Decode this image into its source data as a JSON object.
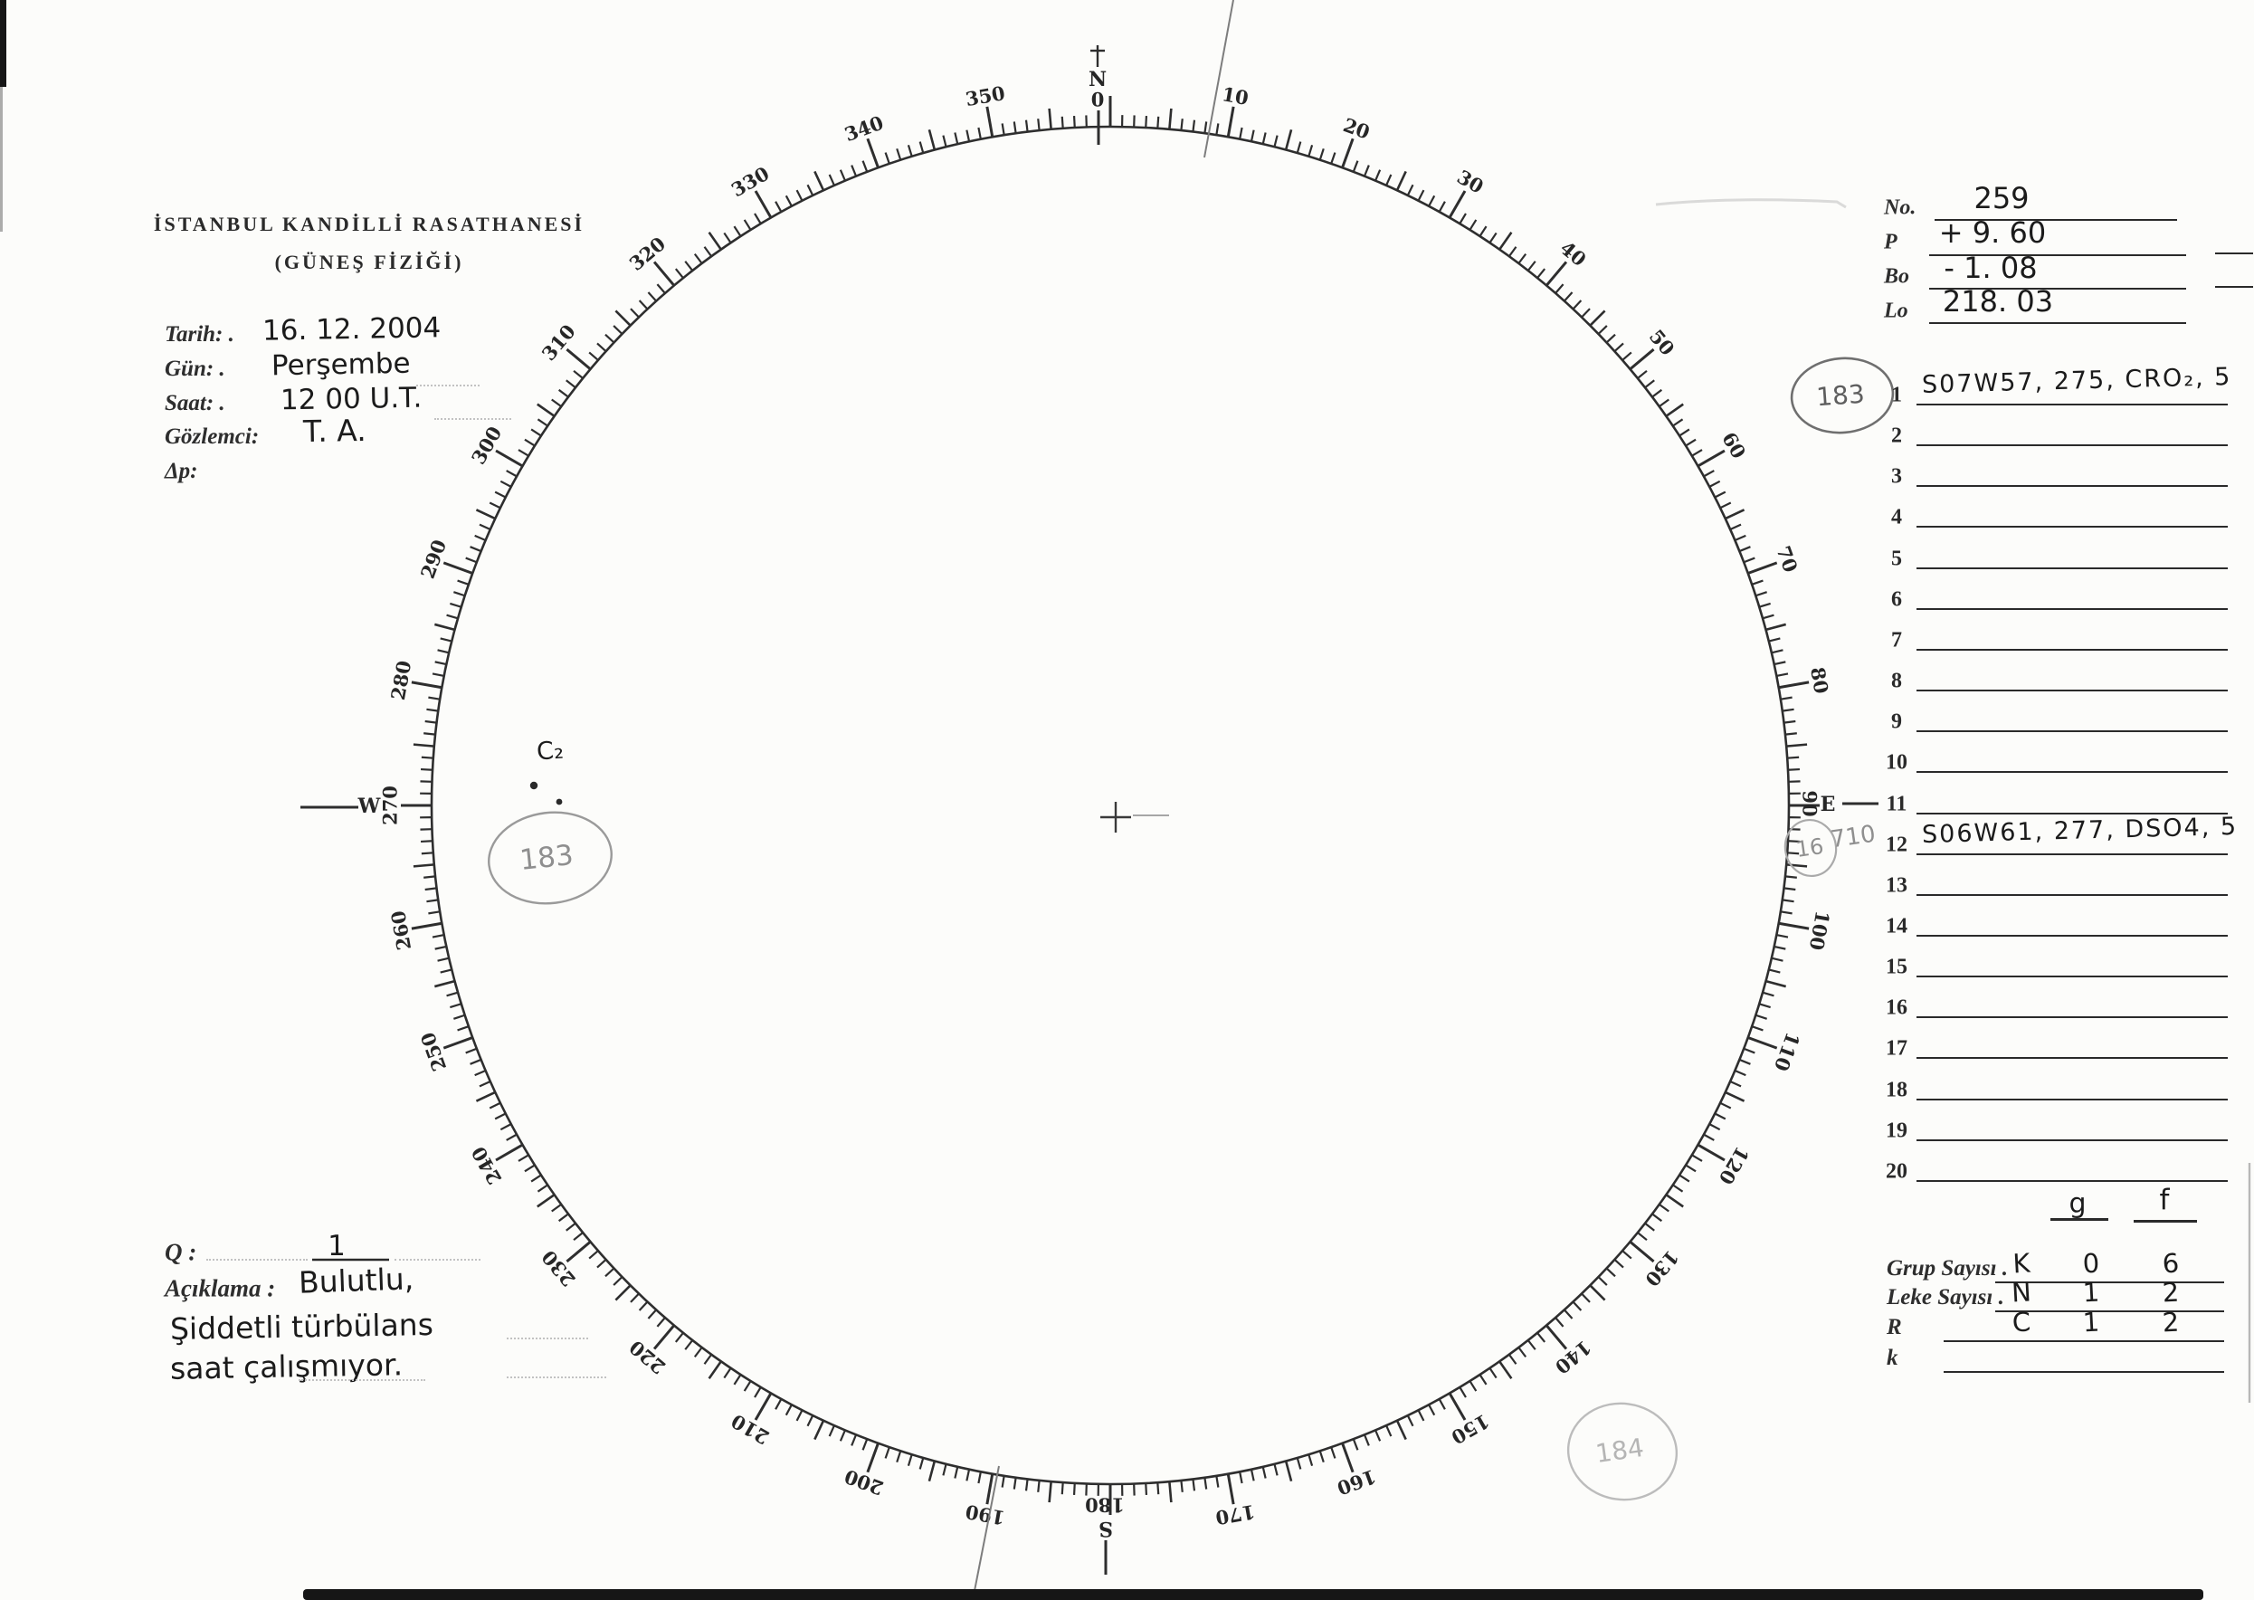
{
  "colors": {
    "paper": "#fcfcfa",
    "ink": "#222222",
    "pencil": "#8f8f8f",
    "faint_pencil": "#b5b5b5"
  },
  "header": {
    "org_line1": "İSTANBUL KANDİLLİ RASATHANESİ",
    "org_line2": "(GÜNEŞ FİZİĞİ)"
  },
  "observation": {
    "tarih_label": "Tarih: .",
    "tarih_value": "16. 12. 2004",
    "gun_label": "Gün: .",
    "gun_value": "Perşembe",
    "saat_label": "Saat: .",
    "saat_value": "12 00 U.T.",
    "gozlemci_label": "Gözlemci:",
    "gozlemci_value": "T. A.",
    "dp_label": "Δp:"
  },
  "ephemeris": {
    "no_label": "No.",
    "no_value": "259",
    "p_label": "P",
    "p_value": "+ 9. 60",
    "bo_label": "Bo",
    "bo_value": "- 1. 08",
    "lo_label": "Lo",
    "lo_value": "218. 03"
  },
  "region_list": {
    "rows": [
      {
        "num": "1",
        "entry": "S07W57, 275, CRO₂, 5"
      },
      {
        "num": "2",
        "entry": ""
      },
      {
        "num": "3",
        "entry": ""
      },
      {
        "num": "4",
        "entry": ""
      },
      {
        "num": "5",
        "entry": ""
      },
      {
        "num": "6",
        "entry": ""
      },
      {
        "num": "7",
        "entry": ""
      },
      {
        "num": "8",
        "entry": ""
      },
      {
        "num": "9",
        "entry": ""
      },
      {
        "num": "10",
        "entry": ""
      },
      {
        "num": "11",
        "entry": ""
      },
      {
        "num": "12",
        "entry": "S06W61, 277, DSO4, 5"
      },
      {
        "num": "13",
        "entry": ""
      },
      {
        "num": "14",
        "entry": ""
      },
      {
        "num": "15",
        "entry": ""
      },
      {
        "num": "16",
        "entry": ""
      },
      {
        "num": "17",
        "entry": ""
      },
      {
        "num": "18",
        "entry": ""
      },
      {
        "num": "19",
        "entry": ""
      },
      {
        "num": "20",
        "entry": ""
      }
    ]
  },
  "summary": {
    "col_g": "g",
    "col_f": "f",
    "rows": [
      {
        "label": "Grup Sayısı .",
        "v1": "K",
        "v2": "0",
        "v3": "6"
      },
      {
        "label": "Leke Sayısı .",
        "v1": "N",
        "v2": "1",
        "v3": "2"
      },
      {
        "label": "R",
        "v1": "C",
        "v2": "1",
        "v3": "2"
      },
      {
        "label": "k",
        "v1": "",
        "v2": "",
        "v3": ""
      }
    ]
  },
  "notes": {
    "q_label": "Q :",
    "q_value": "1",
    "aciklama_label": "Açıklama :",
    "aciklama_value": "Bulutlu,",
    "line2": "Şiddetli türbülans",
    "line3": "saat çalışmıyor."
  },
  "annotations": {
    "c2": "C₂",
    "left_group_number": "183",
    "row1_group_number": "183",
    "bottom_group_number": "184",
    "row12_circled": "16",
    "row12_value": "710"
  },
  "dial": {
    "degree_labels": [
      "10",
      "20",
      "30",
      "40",
      "50",
      "60",
      "70",
      "80",
      "100",
      "110",
      "120",
      "130",
      "140",
      "150",
      "160",
      "170",
      "190",
      "200",
      "210",
      "220",
      "230",
      "240",
      "250",
      "260",
      "280",
      "290",
      "300",
      "310",
      "320",
      "330",
      "340",
      "350"
    ],
    "north_label": "N",
    "north_degree": "0",
    "east_label": "E",
    "east_degree": "90",
    "south_label": "S",
    "south_degree": "180",
    "west_label": "W",
    "west_degree": "270"
  }
}
